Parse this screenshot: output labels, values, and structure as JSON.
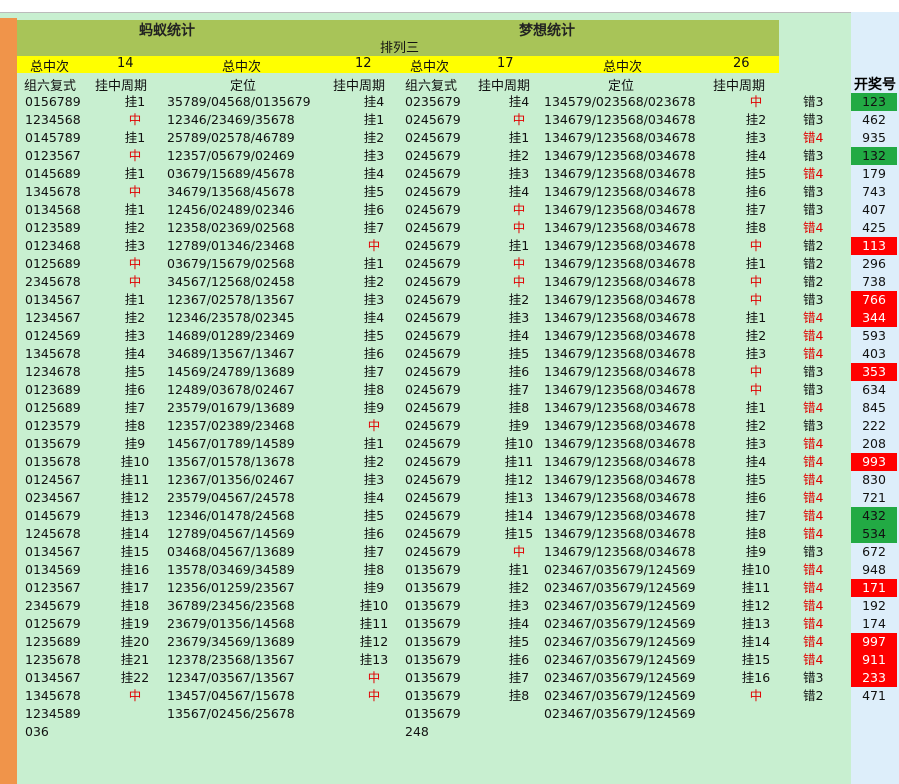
{
  "titles": {
    "left": "蚂蚁统计",
    "right": "梦想统计",
    "sub": "排列三"
  },
  "yellow": {
    "a": "总中次",
    "b": "14",
    "c": "总中次",
    "d": "12",
    "e": "总中次",
    "f": "17",
    "g": "总中次",
    "h": "26"
  },
  "headers": {
    "h1": "组六复式",
    "h2": "挂中周期",
    "h3": "定位",
    "h4": "挂中周期",
    "h5": "组六复式",
    "h6": "挂中周期",
    "h7": "定位",
    "h8": "挂中周期",
    "h9": "开奖号"
  },
  "colors": {
    "green": "#22aa44",
    "red": "#ff0000"
  },
  "rows": [
    [
      "0156789",
      "挂1",
      "35789/04568/0135679",
      "挂4",
      "0235679",
      "挂4",
      "134579/023568/023678",
      "中",
      "错3",
      "123",
      "g"
    ],
    [
      "1234568",
      "中",
      "12346/23469/35678",
      "挂1",
      "0245679",
      "中",
      "134679/123568/034678",
      "挂2",
      "错3",
      "462",
      ""
    ],
    [
      "0145789",
      "挂1",
      "25789/02578/46789",
      "挂2",
      "0245679",
      "挂1",
      "134679/123568/034678",
      "挂3",
      "错4",
      "935",
      ""
    ],
    [
      "0123567",
      "中",
      "12357/05679/02469",
      "挂3",
      "0245679",
      "挂2",
      "134679/123568/034678",
      "挂4",
      "错3",
      "132",
      "g"
    ],
    [
      "0145689",
      "挂1",
      "03679/15689/45678",
      "挂4",
      "0245679",
      "挂3",
      "134679/123568/034678",
      "挂5",
      "错4",
      "179",
      ""
    ],
    [
      "1345678",
      "中",
      "34679/13568/45678",
      "挂5",
      "0245679",
      "挂4",
      "134679/123568/034678",
      "挂6",
      "错3",
      "743",
      ""
    ],
    [
      "0134568",
      "挂1",
      "12456/02489/02346",
      "挂6",
      "0245679",
      "中",
      "134679/123568/034678",
      "挂7",
      "错3",
      "407",
      ""
    ],
    [
      "0123589",
      "挂2",
      "12358/02369/02568",
      "挂7",
      "0245679",
      "中",
      "134679/123568/034678",
      "挂8",
      "错4",
      "425",
      ""
    ],
    [
      "0123468",
      "挂3",
      "12789/01346/23468",
      "中",
      "0245679",
      "挂1",
      "134679/123568/034678",
      "中",
      "错2",
      "113",
      "r"
    ],
    [
      "0125689",
      "中",
      "03679/15679/02568",
      "挂1",
      "0245679",
      "中",
      "134679/123568/034678",
      "挂1",
      "错2",
      "296",
      ""
    ],
    [
      "2345678",
      "中",
      "34567/12568/02458",
      "挂2",
      "0245679",
      "中",
      "134679/123568/034678",
      "中",
      "错2",
      "738",
      ""
    ],
    [
      "0134567",
      "挂1",
      "12367/02578/13567",
      "挂3",
      "0245679",
      "挂2",
      "134679/123568/034678",
      "中",
      "错3",
      "766",
      "r"
    ],
    [
      "1234567",
      "挂2",
      "12346/23578/02345",
      "挂4",
      "0245679",
      "挂3",
      "134679/123568/034678",
      "挂1",
      "错4",
      "344",
      "r"
    ],
    [
      "0124569",
      "挂3",
      "14689/01289/23469",
      "挂5",
      "0245679",
      "挂4",
      "134679/123568/034678",
      "挂2",
      "错4",
      "593",
      ""
    ],
    [
      "1345678",
      "挂4",
      "34689/13567/13467",
      "挂6",
      "0245679",
      "挂5",
      "134679/123568/034678",
      "挂3",
      "错4",
      "403",
      ""
    ],
    [
      "1234678",
      "挂5",
      "14569/24789/13689",
      "挂7",
      "0245679",
      "挂6",
      "134679/123568/034678",
      "中",
      "错3",
      "353",
      "r"
    ],
    [
      "0123689",
      "挂6",
      "12489/03678/02467",
      "挂8",
      "0245679",
      "挂7",
      "134679/123568/034678",
      "中",
      "错3",
      "634",
      ""
    ],
    [
      "0125689",
      "挂7",
      "23579/01679/13689",
      "挂9",
      "0245679",
      "挂8",
      "134679/123568/034678",
      "挂1",
      "错4",
      "845",
      ""
    ],
    [
      "0123579",
      "挂8",
      "12357/02389/23468",
      "中",
      "0245679",
      "挂9",
      "134679/123568/034678",
      "挂2",
      "错3",
      "222",
      ""
    ],
    [
      "0135679",
      "挂9",
      "14567/01789/14589",
      "挂1",
      "0245679",
      "挂10",
      "134679/123568/034678",
      "挂3",
      "错4",
      "208",
      ""
    ],
    [
      "0135678",
      "挂10",
      "13567/01578/13678",
      "挂2",
      "0245679",
      "挂11",
      "134679/123568/034678",
      "挂4",
      "错4",
      "993",
      "r"
    ],
    [
      "0124567",
      "挂11",
      "12367/01356/02467",
      "挂3",
      "0245679",
      "挂12",
      "134679/123568/034678",
      "挂5",
      "错4",
      "830",
      ""
    ],
    [
      "0234567",
      "挂12",
      "23579/04567/24578",
      "挂4",
      "0245679",
      "挂13",
      "134679/123568/034678",
      "挂6",
      "错4",
      "721",
      ""
    ],
    [
      "0145679",
      "挂13",
      "12346/01478/24568",
      "挂5",
      "0245679",
      "挂14",
      "134679/123568/034678",
      "挂7",
      "错4",
      "432",
      "g"
    ],
    [
      "1245678",
      "挂14",
      "12789/04567/14569",
      "挂6",
      "0245679",
      "挂15",
      "134679/123568/034678",
      "挂8",
      "错4",
      "534",
      "g"
    ],
    [
      "0134567",
      "挂15",
      "03468/04567/13689",
      "挂7",
      "0245679",
      "中",
      "134679/123568/034678",
      "挂9",
      "错3",
      "672",
      ""
    ],
    [
      "0134569",
      "挂16",
      "13578/03469/34589",
      "挂8",
      "0135679",
      "挂1",
      "023467/035679/124569",
      "挂10",
      "错4",
      "948",
      ""
    ],
    [
      "0123567",
      "挂17",
      "12356/01259/23567",
      "挂9",
      "0135679",
      "挂2",
      "023467/035679/124569",
      "挂11",
      "错4",
      "171",
      "r"
    ],
    [
      "2345679",
      "挂18",
      "36789/23456/23568",
      "挂10",
      "0135679",
      "挂3",
      "023467/035679/124569",
      "挂12",
      "错4",
      "192",
      ""
    ],
    [
      "0125679",
      "挂19",
      "23679/01356/14568",
      "挂11",
      "0135679",
      "挂4",
      "023467/035679/124569",
      "挂13",
      "错4",
      "174",
      ""
    ],
    [
      "1235689",
      "挂20",
      "23679/34569/13689",
      "挂12",
      "0135679",
      "挂5",
      "023467/035679/124569",
      "挂14",
      "错4",
      "997",
      "r"
    ],
    [
      "1235678",
      "挂21",
      "12378/23568/13567",
      "挂13",
      "0135679",
      "挂6",
      "023467/035679/124569",
      "挂15",
      "错4",
      "911",
      "r"
    ],
    [
      "0134567",
      "挂22",
      "12347/03567/13567",
      "中",
      "0135679",
      "挂7",
      "023467/035679/124569",
      "挂16",
      "错3",
      "233",
      "r"
    ],
    [
      "1345678",
      "中",
      "13457/04567/15678",
      "中",
      "0135679",
      "挂8",
      "023467/035679/124569",
      "中",
      "错2",
      "471",
      ""
    ],
    [
      "1234589",
      "",
      "13567/02456/25678",
      "",
      "0135679",
      "",
      "023467/035679/124569",
      "",
      "",
      "",
      ""
    ],
    [
      "036",
      "",
      "",
      "",
      "248",
      "",
      "",
      "",
      "",
      "",
      ""
    ]
  ]
}
